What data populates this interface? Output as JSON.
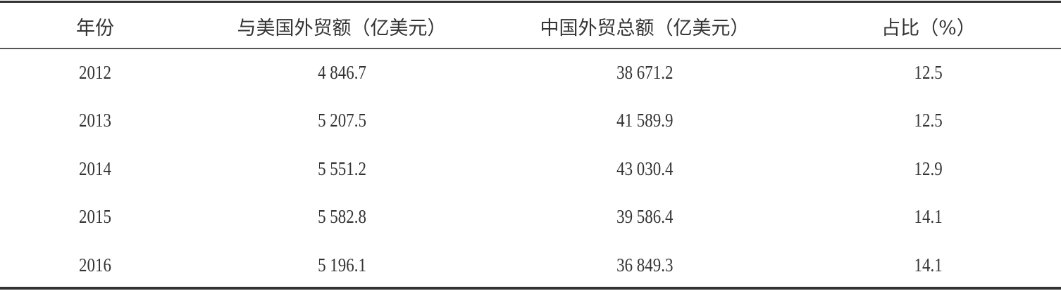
{
  "table": {
    "headers": [
      "年份",
      "与美国外贸额（亿美元）",
      "中国外贸总额（亿美元）",
      "占比（%）"
    ],
    "rows": [
      [
        "2012",
        "4 846.7",
        "38 671.2",
        "12.5"
      ],
      [
        "2013",
        "5 207.5",
        "41 589.9",
        "12.5"
      ],
      [
        "2014",
        "5 551.2",
        "43 030.4",
        "12.9"
      ],
      [
        "2015",
        "5 582.8",
        "39 586.4",
        "14.1"
      ],
      [
        "2016",
        "5 196.1",
        "36 849.3",
        "14.1"
      ]
    ]
  }
}
